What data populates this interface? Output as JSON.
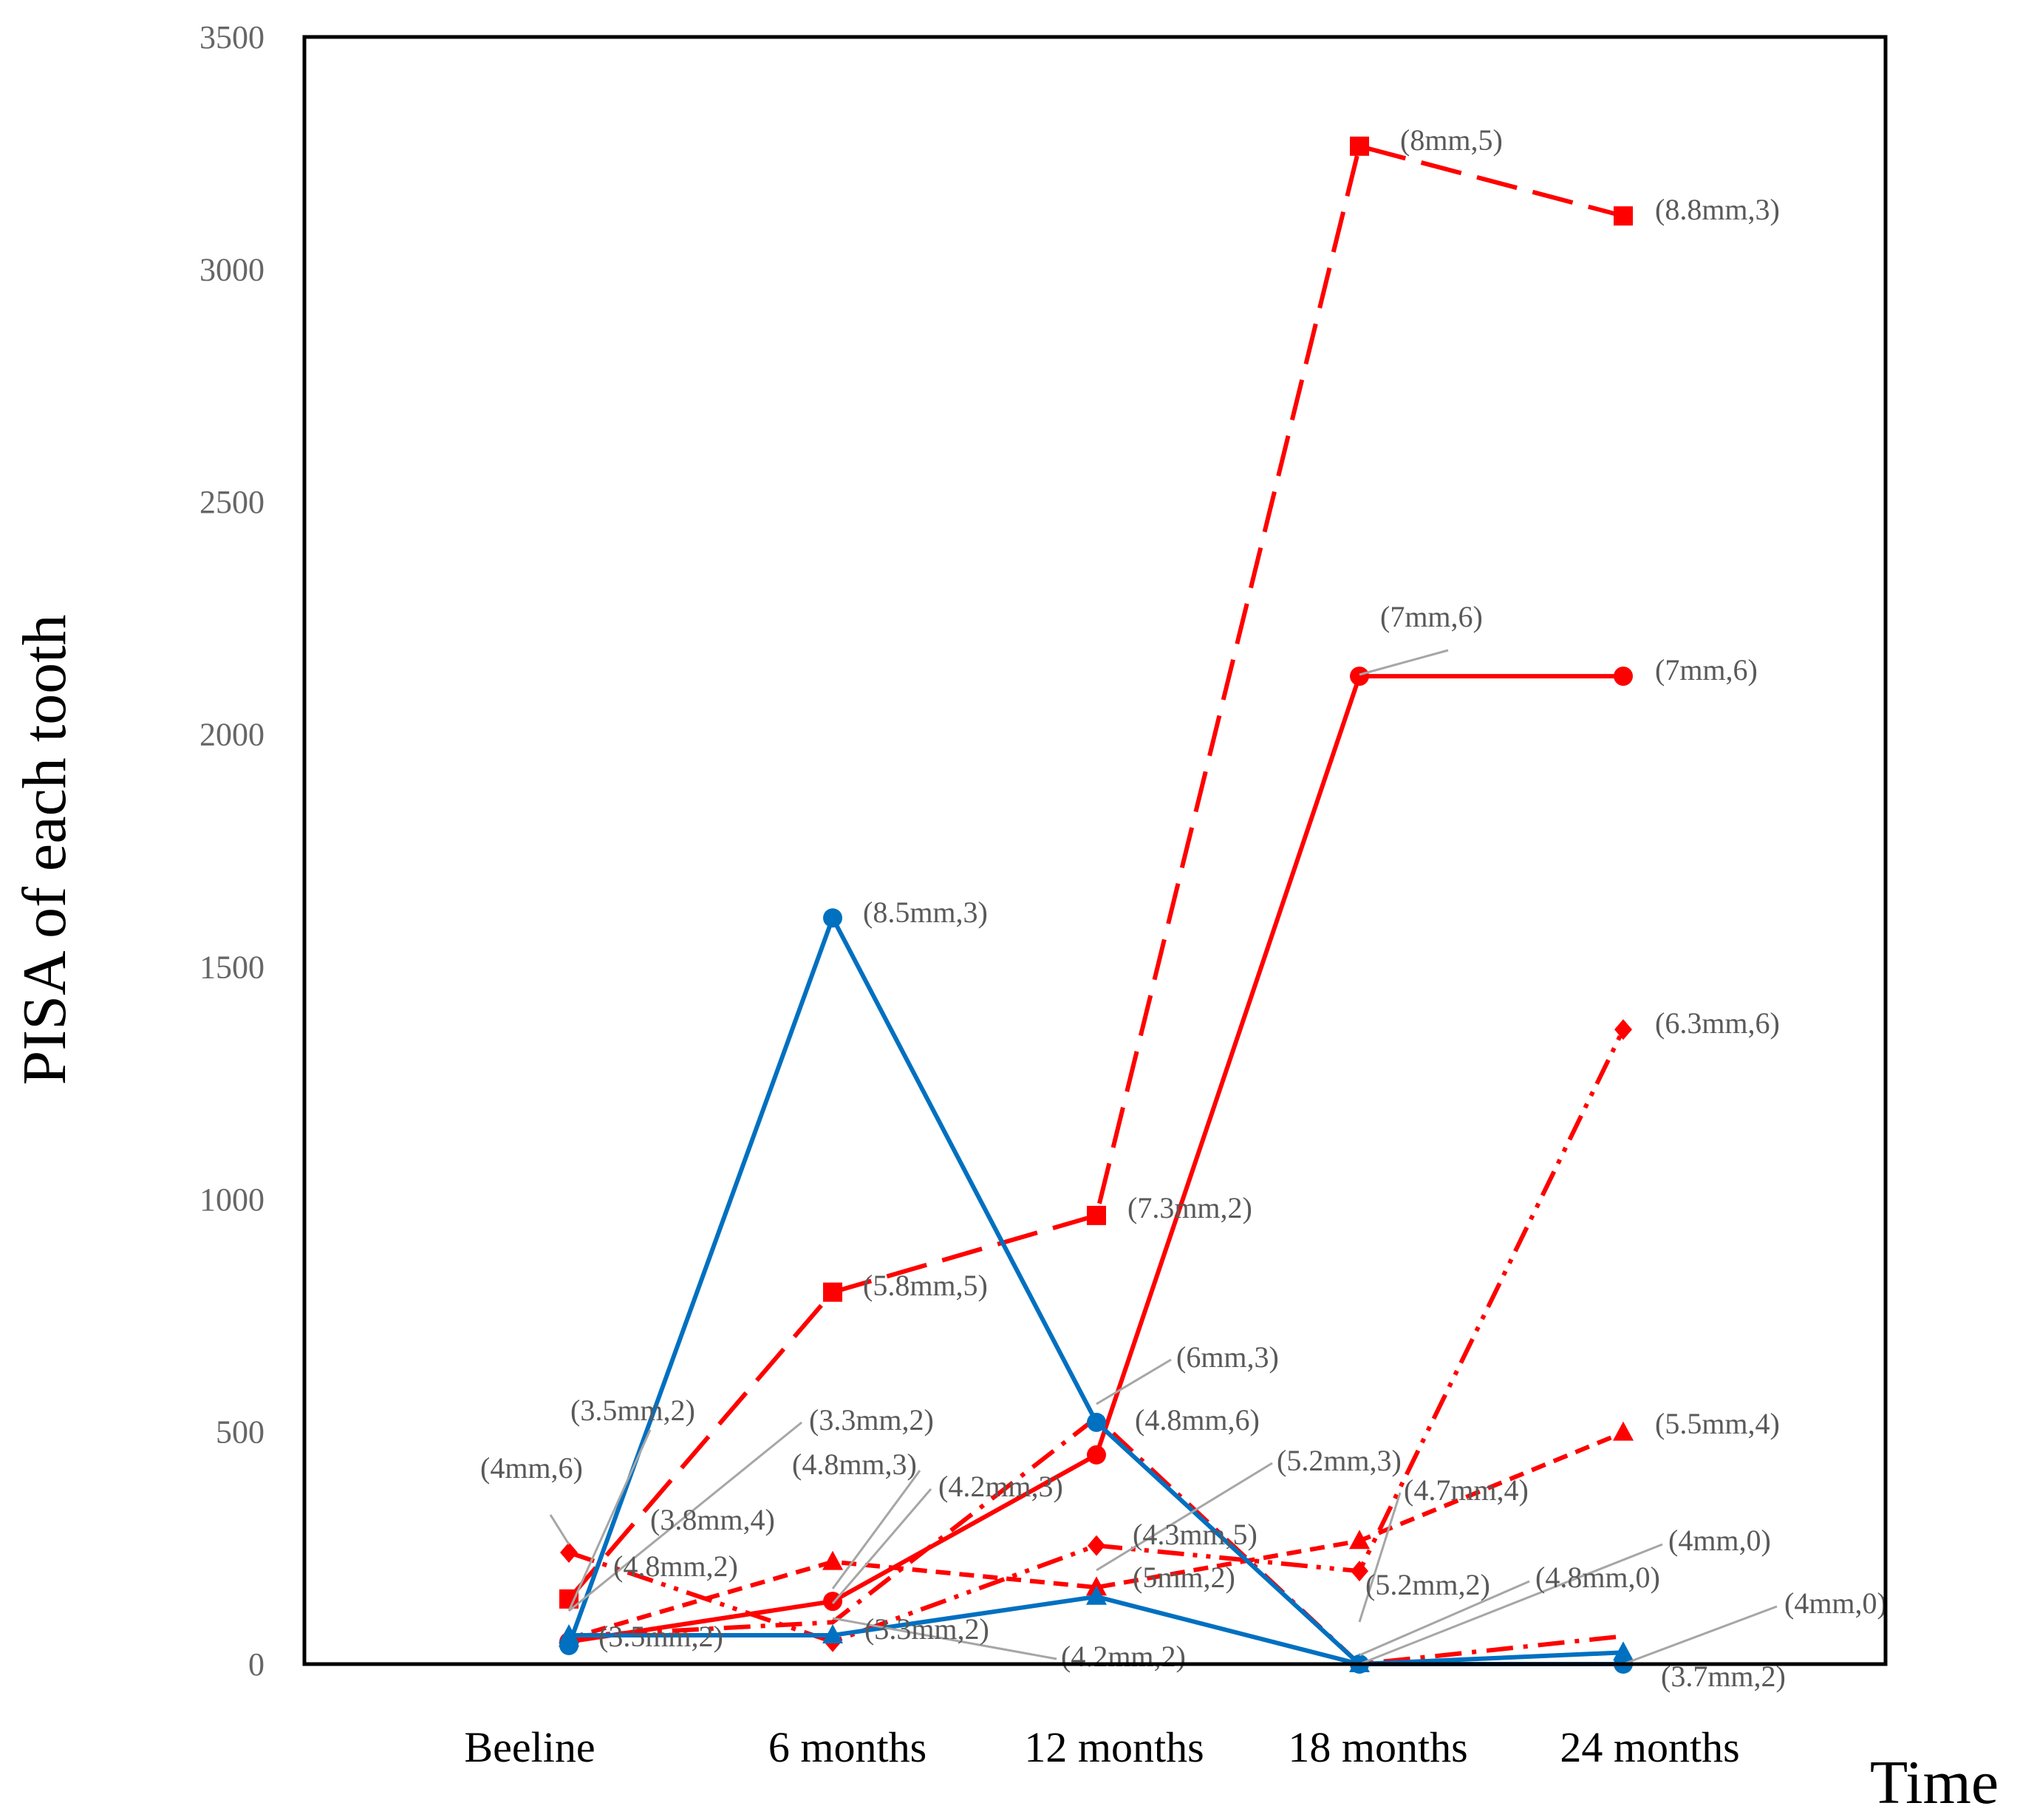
{
  "chart_data": {
    "type": "line",
    "title": "",
    "xlabel": "Time",
    "ylabel": "PISA of each tooth",
    "categories": [
      "Beeline",
      "6 months",
      "12 months",
      "18 months",
      "24 months"
    ],
    "ylim": [
      0,
      3500
    ],
    "yticks": [
      0,
      500,
      1000,
      1500,
      2000,
      2500,
      3000,
      3500
    ],
    "grid": false,
    "legend": "none",
    "colors": {
      "red": "#ff0000",
      "blue": "#0070c0",
      "leader": "#a6a6a6"
    },
    "series": [
      {
        "name": "red long-dash squares",
        "color": "#ff0000",
        "dash": "long-dash",
        "marker": "square",
        "values": [
          140,
          800,
          965,
          3265,
          3115
        ]
      },
      {
        "name": "red solid circles",
        "color": "#ff0000",
        "dash": "solid",
        "marker": "circle",
        "values": [
          48,
          135,
          450,
          2125,
          2125
        ]
      },
      {
        "name": "red dash-dot-dot diamonds",
        "color": "#ff0000",
        "dash": "dash-dot-dot",
        "marker": "diamond",
        "values": [
          240,
          48,
          255,
          200,
          1365
        ]
      },
      {
        "name": "red short-dash triangles",
        "color": "#ff0000",
        "dash": "short-dash",
        "marker": "triangle",
        "values": [
          55,
          220,
          165,
          265,
          498
        ]
      },
      {
        "name": "red dash-dot",
        "color": "#ff0000",
        "dash": "dash-dot",
        "marker": "none",
        "values": [
          60,
          90,
          530,
          0,
          60
        ]
      },
      {
        "name": "blue circles peak",
        "color": "#0070c0",
        "dash": "solid",
        "marker": "circle",
        "values": [
          40,
          1605,
          520,
          0,
          0
        ]
      },
      {
        "name": "blue triangles",
        "color": "#0070c0",
        "dash": "solid",
        "marker": "triangle",
        "values": [
          62,
          62,
          145,
          0,
          25
        ]
      }
    ],
    "annotations": [
      {
        "text": "(8mm,5)",
        "series": 0,
        "index": 3
      },
      {
        "text": "(8.8mm,3)",
        "series": 0,
        "index": 4
      },
      {
        "text": "(7mm,6)",
        "series": 1,
        "index": 3
      },
      {
        "text": "(7mm,6)",
        "series": 1,
        "index": 4
      },
      {
        "text": "(8.5mm,3)",
        "series": 5,
        "index": 1
      },
      {
        "text": "(6.3mm,6)",
        "series": 2,
        "index": 4
      },
      {
        "text": "(7.3mm,2)",
        "series": 0,
        "index": 2
      },
      {
        "text": "(5.8mm,5)",
        "series": 0,
        "index": 1
      },
      {
        "text": "(6mm,3)",
        "series": 4,
        "index": 2
      },
      {
        "text": "(4.8mm,6)",
        "series": 5,
        "index": 2
      },
      {
        "text": "(5.2mm,3)",
        "series": 6,
        "index": 2
      },
      {
        "text": "(4.3mm,5)",
        "series": 2,
        "index": 2
      },
      {
        "text": "(5mm,2)",
        "series": 3,
        "index": 2
      },
      {
        "text": "(4.2mm,2)",
        "series": 6,
        "index": 1
      },
      {
        "text": "(5.5mm,4)",
        "series": 3,
        "index": 4
      },
      {
        "text": "(4.7mm,4)",
        "series": 3,
        "index": 3
      },
      {
        "text": "(5.2mm,2)",
        "series": 2,
        "index": 3
      },
      {
        "text": "(4mm,0)",
        "series": 4,
        "index": 3
      },
      {
        "text": "(4.8mm,0)",
        "series": 5,
        "index": 3
      },
      {
        "text": "(4mm,0)",
        "series": 5,
        "index": 4
      },
      {
        "text": "(3.7mm,2)",
        "series": 6,
        "index": 4
      },
      {
        "text": "(3.5mm,2)",
        "series": 5,
        "index": 0
      },
      {
        "text": "(4mm,6)",
        "series": 2,
        "index": 0
      },
      {
        "text": "(3.8mm,4)",
        "series": 3,
        "index": 0
      },
      {
        "text": "(4.8mm,2)",
        "series": 4,
        "index": 0
      },
      {
        "text": "(3.5mm,2)",
        "series": 6,
        "index": 0
      },
      {
        "text": "(3.3mm,2)",
        "series": 1,
        "index": 0
      },
      {
        "text": "(4.8mm,3)",
        "series": 1,
        "index": 1
      },
      {
        "text": "(4.2mm,3)",
        "series": 3,
        "index": 1
      },
      {
        "text": "(3.3mm,2)",
        "series": 2,
        "index": 1
      }
    ]
  }
}
